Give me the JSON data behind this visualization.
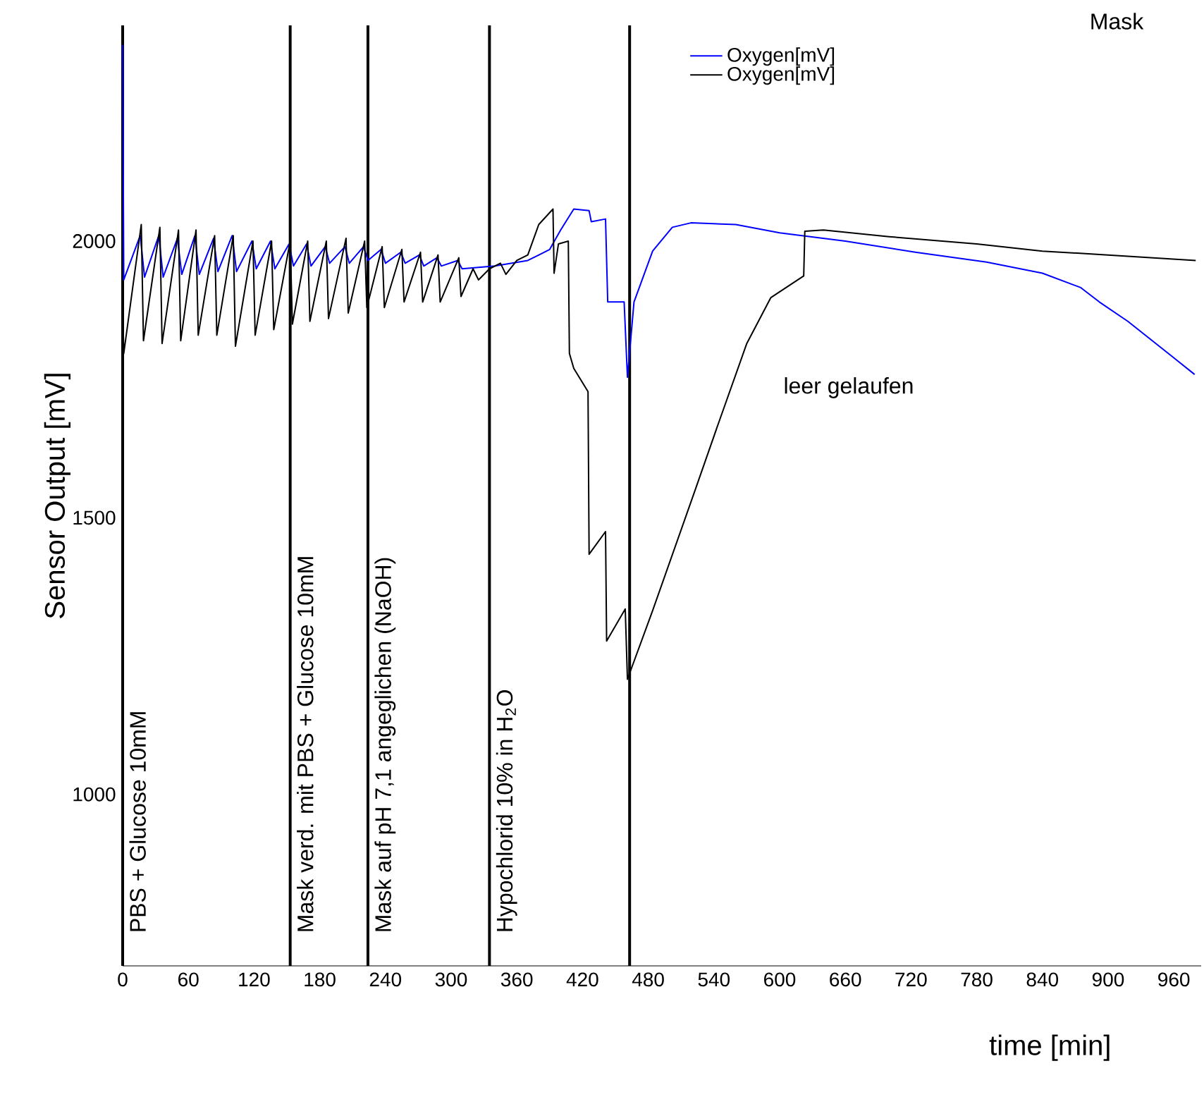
{
  "chart_data": {
    "type": "line",
    "xlabel": "time [min]",
    "ylabel": "Sensor Output [mV]",
    "xlim": [
      0,
      985
    ],
    "ylim": [
      690,
      2390
    ],
    "xticks": [
      0,
      60,
      120,
      180,
      240,
      300,
      360,
      420,
      480,
      540,
      600,
      660,
      720,
      780,
      840,
      900,
      960
    ],
    "yticks": [
      1000,
      1500,
      2000
    ],
    "grid": false,
    "legend": "top",
    "marker": "none",
    "line_style": "solid",
    "series": [
      {
        "name": "Oxygen[mV]",
        "color": "#0000ff",
        "x": [
          0,
          1,
          16,
          20,
          33,
          37,
          50,
          54,
          66,
          70,
          83,
          87,
          100,
          104,
          118,
          122,
          135,
          139,
          152,
          156,
          168,
          172,
          185,
          189,
          203,
          207,
          220,
          224,
          236,
          240,
          254,
          258,
          271,
          275,
          287,
          291,
          306,
          310,
          340,
          370,
          390,
          400,
          412,
          426,
          428,
          441,
          443,
          458,
          461,
          467,
          484,
          502,
          519,
          560,
          600,
          660,
          724,
          789,
          840,
          875,
          892,
          918,
          960,
          979
        ],
        "values": [
          2355,
          1930,
          2010,
          1935,
          2010,
          1935,
          2005,
          1940,
          2010,
          1940,
          2005,
          1945,
          2010,
          1945,
          2000,
          1950,
          2000,
          1950,
          1995,
          1955,
          1995,
          1955,
          1990,
          1960,
          1990,
          1960,
          1990,
          1965,
          1985,
          1960,
          1980,
          1960,
          1975,
          1955,
          1970,
          1955,
          1965,
          1950,
          1955,
          1965,
          1985,
          2020,
          2058,
          2055,
          2035,
          2040,
          1890,
          1890,
          1754,
          1890,
          1982,
          2025,
          2033,
          2030,
          2015,
          2000,
          1980,
          1962,
          1942,
          1916,
          1890,
          1855,
          1789,
          1759
        ]
      },
      {
        "name": "Oxygen[mV]",
        "color": "#000000",
        "x": [
          0,
          1,
          17,
          19,
          34,
          36,
          51,
          53,
          67,
          69,
          84,
          86,
          101,
          103,
          119,
          121,
          136,
          138,
          153,
          155,
          169,
          171,
          186,
          188,
          204,
          206,
          221,
          223,
          237,
          239,
          255,
          257,
          272,
          274,
          288,
          290,
          307,
          309,
          320,
          325,
          335,
          345,
          350,
          360,
          370,
          380,
          393,
          394,
          398,
          407,
          408,
          412,
          425,
          426,
          441,
          442,
          459,
          461,
          484,
          523,
          544,
          570,
          592,
          622,
          623,
          640,
          700,
          780,
          840,
          900,
          980
        ],
        "values": [
          1880,
          1797,
          2030,
          1820,
          2025,
          1815,
          2020,
          1820,
          2020,
          1830,
          2010,
          1830,
          2010,
          1810,
          2000,
          1830,
          2000,
          1840,
          2000,
          1850,
          2000,
          1855,
          2000,
          1860,
          2005,
          1870,
          2000,
          1880,
          1990,
          1880,
          1985,
          1890,
          1980,
          1890,
          1975,
          1890,
          1970,
          1900,
          1950,
          1930,
          1950,
          1960,
          1940,
          1965,
          1975,
          2030,
          2058,
          1942,
          1995,
          2000,
          1797,
          1770,
          1728,
          1434,
          1475,
          1277,
          1335,
          1208,
          1332,
          1551,
          1670,
          1815,
          1898,
          1937,
          2018,
          2020,
          2008,
          1995,
          1982,
          1975,
          1965
        ]
      }
    ],
    "ref_lines": [
      {
        "axis": "x",
        "value": 0,
        "label": "PBS + Glucose 10mM"
      },
      {
        "axis": "x",
        "value": 153,
        "label": "Mask verd. mit PBS + Glucose 10mM"
      },
      {
        "axis": "x",
        "value": 224,
        "label": "Mask auf pH 7,1 angeglichen (NaOH)"
      },
      {
        "axis": "x",
        "value": 335,
        "label": "Hypochlorid 10% in H$_{2}$O"
      },
      {
        "axis": "x",
        "value": 463
      }
    ],
    "annotations": [
      "Mask",
      "leer gelaufen"
    ]
  }
}
